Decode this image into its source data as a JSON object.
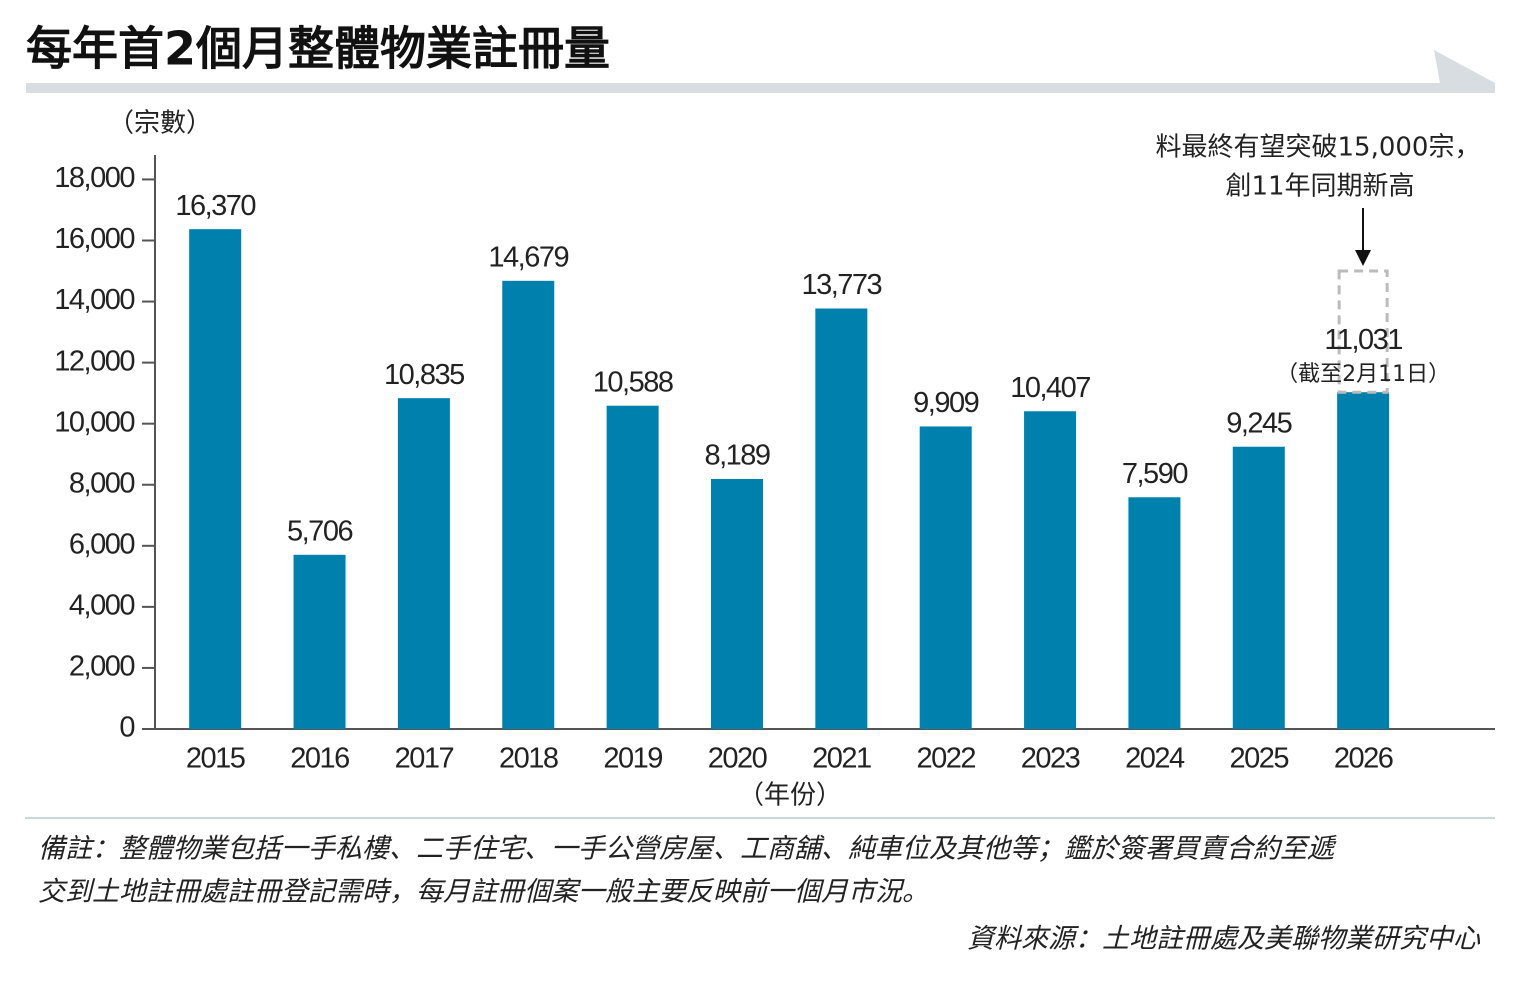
{
  "chart_data": {
    "type": "bar",
    "title": "每年首2個月整體物業註冊量",
    "y_label": "（宗數）",
    "x_label": "（年份）",
    "categories": [
      "2015",
      "2016",
      "2017",
      "2018",
      "2019",
      "2020",
      "2021",
      "2022",
      "2023",
      "2024",
      "2025",
      "2026"
    ],
    "values": [
      16370,
      5706,
      10835,
      14679,
      10588,
      8189,
      13773,
      9909,
      10407,
      7590,
      9245,
      11031
    ],
    "value_labels": [
      "16,370",
      "5,706",
      "10,835",
      "14,679",
      "10,588",
      "8,189",
      "13,773",
      "9,909",
      "10,407",
      "7,590",
      "9,245",
      "11,031"
    ],
    "color": "#0080ad",
    "ylim": [
      0,
      18800
    ],
    "yticks": [
      0,
      {
        "value": 2000,
        "label": "2,000"
      },
      {
        "value": 4000,
        "label": "4,000"
      },
      {
        "value": 6000,
        "label": "6,000"
      },
      {
        "value": 8000,
        "label": "8,000"
      },
      {
        "value": 10000,
        "label": "10,000"
      },
      {
        "value": 12000,
        "label": "12,000"
      },
      {
        "value": 14000,
        "label": "14,000"
      },
      {
        "value": 16000,
        "label": "16,000"
      },
      {
        "value": 18000,
        "label": "18,000"
      }
    ],
    "grid": false,
    "annotation": {
      "lines": [
        "料最終有望突破15,000宗，",
        "創11年同期新高"
      ],
      "value": 15000,
      "note": "（截至2月11日）"
    },
    "notes": [
      "備註：整體物業包括一手私樓、二手住宅、一手公營房屋、工商舖、純車位及其他等；鑑於簽署買賣合約至遞",
      "交到土地註冊處註冊登記需時，每月註冊個案一般主要反映前一個月市況。"
    ],
    "source": "資料來源：土地註冊處及美聯物業研究中心"
  }
}
